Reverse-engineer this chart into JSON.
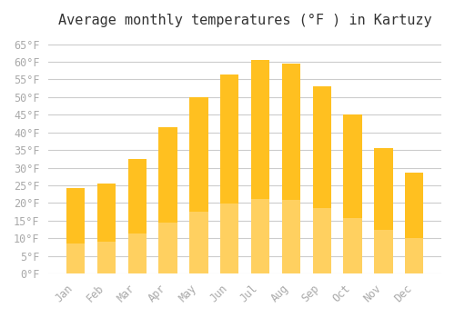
{
  "title": "Average monthly temperatures (°F ) in Kartuzy",
  "months": [
    "Jan",
    "Feb",
    "Mar",
    "Apr",
    "May",
    "Jun",
    "Jul",
    "Aug",
    "Sep",
    "Oct",
    "Nov",
    "Dec"
  ],
  "values": [
    24.1,
    25.5,
    32.5,
    41.5,
    50.0,
    56.5,
    60.5,
    59.5,
    53.0,
    45.0,
    35.5,
    28.5
  ],
  "bar_color_top": "#FFC020",
  "bar_color_bottom": "#FFD060",
  "background_color": "#FFFFFF",
  "grid_color": "#CCCCCC",
  "text_color": "#AAAAAA",
  "ylim": [
    0,
    67
  ],
  "yticks": [
    0,
    5,
    10,
    15,
    20,
    25,
    30,
    35,
    40,
    45,
    50,
    55,
    60,
    65
  ],
  "title_fontsize": 11,
  "tick_fontsize": 8.5,
  "font_family": "monospace"
}
